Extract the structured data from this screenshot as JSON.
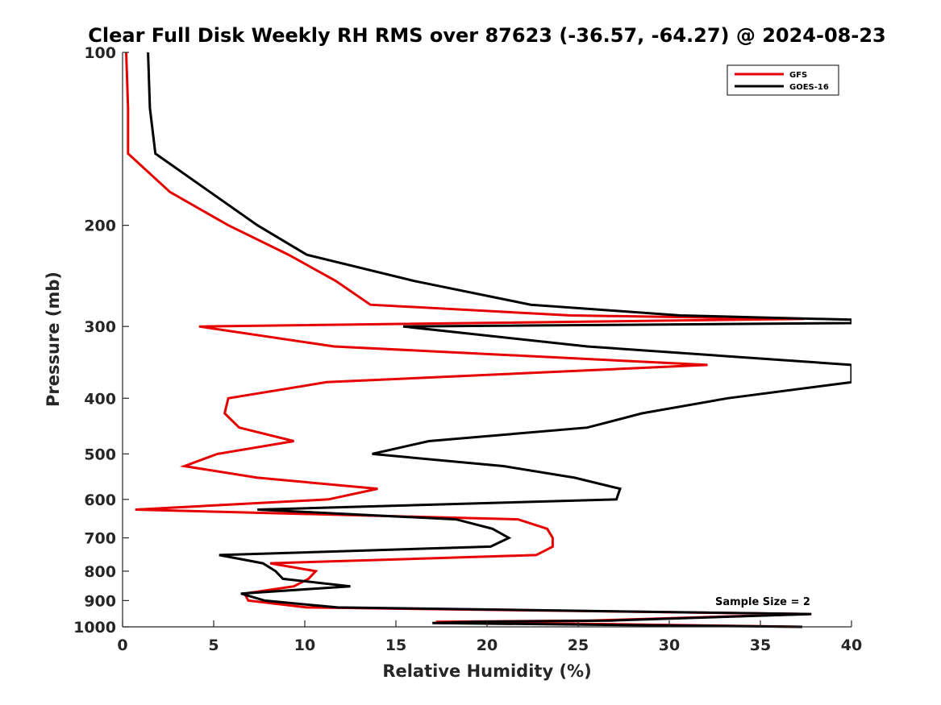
{
  "chart_data": {
    "type": "line",
    "title": "Clear Full Disk Weekly RH RMS over 87623 (-36.57, -64.27) @ 2024-08-23",
    "xlabel": "Relative Humidity (%)",
    "ylabel": "Pressure (mb)",
    "xlim": [
      0,
      40
    ],
    "ylim": [
      100,
      1000
    ],
    "y_scale": "log",
    "y_reversed": true,
    "grid": false,
    "legend_position": "top-right",
    "x_ticks": [
      0,
      5,
      10,
      15,
      20,
      25,
      30,
      35,
      40
    ],
    "y_ticks": [
      100,
      200,
      300,
      400,
      500,
      600,
      700,
      800,
      900,
      1000
    ],
    "annotation": "Sample Size = 2",
    "series": [
      {
        "name": "GFS",
        "color": "#e60000",
        "points": [
          [
            0.2,
            100
          ],
          [
            0.3,
            125
          ],
          [
            0.3,
            150
          ],
          [
            2.6,
            175
          ],
          [
            5.8,
            200
          ],
          [
            9.1,
            225
          ],
          [
            11.7,
            250
          ],
          [
            13.6,
            275
          ],
          [
            24.6,
            287
          ],
          [
            37.4,
            291
          ],
          [
            4.2,
            300
          ],
          [
            11.6,
            325
          ],
          [
            32.1,
            350
          ],
          [
            11.2,
            375
          ],
          [
            5.8,
            400
          ],
          [
            5.6,
            425
          ],
          [
            6.4,
            450
          ],
          [
            9.4,
            475
          ],
          [
            5.2,
            500
          ],
          [
            3.4,
            525
          ],
          [
            7.4,
            550
          ],
          [
            14.0,
            575
          ],
          [
            11.3,
            600
          ],
          [
            0.7,
            625
          ],
          [
            21.7,
            650
          ],
          [
            23.3,
            675
          ],
          [
            23.6,
            700
          ],
          [
            23.6,
            725
          ],
          [
            22.7,
            750
          ],
          [
            8.1,
            775
          ],
          [
            10.6,
            800
          ],
          [
            10.2,
            825
          ],
          [
            9.4,
            850
          ],
          [
            6.7,
            875
          ],
          [
            6.9,
            900
          ],
          [
            10.1,
            925
          ],
          [
            37.7,
            950
          ],
          [
            25.7,
            975
          ],
          [
            17.2,
            980
          ],
          [
            37.3,
            1000
          ]
        ]
      },
      {
        "name": "GOES-16",
        "color": "#000000",
        "points": [
          [
            1.4,
            100
          ],
          [
            1.5,
            125
          ],
          [
            1.8,
            150
          ],
          [
            4.8,
            175
          ],
          [
            7.4,
            200
          ],
          [
            10.1,
            225
          ],
          [
            16.0,
            250
          ],
          [
            22.4,
            275
          ],
          [
            30.6,
            287
          ],
          [
            40.0,
            292
          ],
          [
            40.0,
            296
          ],
          [
            15.4,
            300
          ],
          [
            25.5,
            325
          ],
          [
            40.0,
            350
          ],
          [
            40.0,
            375
          ],
          [
            33.2,
            400
          ],
          [
            28.5,
            425
          ],
          [
            25.5,
            450
          ],
          [
            16.8,
            475
          ],
          [
            13.7,
            500
          ],
          [
            20.9,
            525
          ],
          [
            24.8,
            550
          ],
          [
            27.3,
            575
          ],
          [
            27.1,
            600
          ],
          [
            7.4,
            625
          ],
          [
            18.3,
            650
          ],
          [
            20.3,
            675
          ],
          [
            21.2,
            700
          ],
          [
            20.2,
            725
          ],
          [
            5.3,
            750
          ],
          [
            7.7,
            775
          ],
          [
            8.4,
            800
          ],
          [
            8.8,
            825
          ],
          [
            12.5,
            850
          ],
          [
            6.5,
            875
          ],
          [
            7.8,
            900
          ],
          [
            11.8,
            925
          ],
          [
            37.8,
            950
          ],
          [
            26.8,
            975
          ],
          [
            19.4,
            980
          ],
          [
            17.0,
            985
          ],
          [
            37.3,
            1000
          ]
        ]
      }
    ]
  }
}
